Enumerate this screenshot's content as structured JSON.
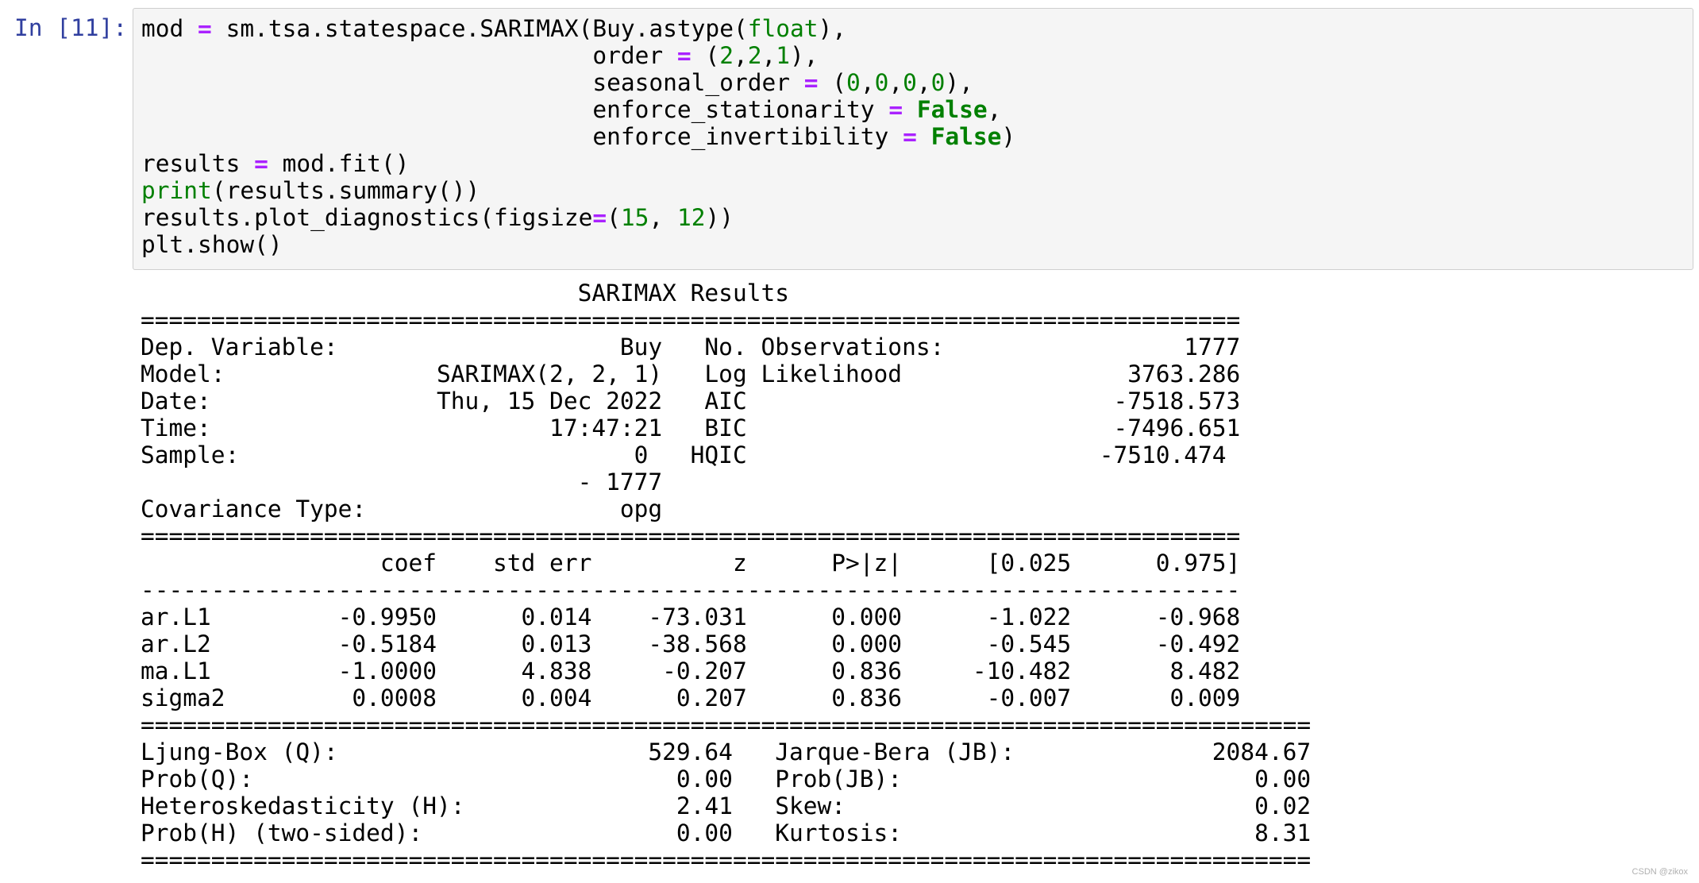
{
  "cell": {
    "prompt": "In [11]:",
    "code_lines": [
      [
        {
          "t": "mod ",
          "c": ""
        },
        {
          "t": "=",
          "c": "op"
        },
        {
          "t": " sm.tsa.statespace.SARIMAX(Buy.astype(",
          "c": ""
        },
        {
          "t": "float",
          "c": "bi"
        },
        {
          "t": "),",
          "c": ""
        }
      ],
      [
        {
          "t": "                                order ",
          "c": ""
        },
        {
          "t": "=",
          "c": "op"
        },
        {
          "t": " (",
          "c": ""
        },
        {
          "t": "2",
          "c": "nm"
        },
        {
          "t": ",",
          "c": ""
        },
        {
          "t": "2",
          "c": "nm"
        },
        {
          "t": ",",
          "c": ""
        },
        {
          "t": "1",
          "c": "nm"
        },
        {
          "t": "),",
          "c": ""
        }
      ],
      [
        {
          "t": "                                seasonal_order ",
          "c": ""
        },
        {
          "t": "=",
          "c": "op"
        },
        {
          "t": " (",
          "c": ""
        },
        {
          "t": "0",
          "c": "nm"
        },
        {
          "t": ",",
          "c": ""
        },
        {
          "t": "0",
          "c": "nm"
        },
        {
          "t": ",",
          "c": ""
        },
        {
          "t": "0",
          "c": "nm"
        },
        {
          "t": ",",
          "c": ""
        },
        {
          "t": "0",
          "c": "nm"
        },
        {
          "t": "),",
          "c": ""
        }
      ],
      [
        {
          "t": "                                enforce_stationarity ",
          "c": ""
        },
        {
          "t": "=",
          "c": "op"
        },
        {
          "t": " ",
          "c": ""
        },
        {
          "t": "False",
          "c": "kw"
        },
        {
          "t": ",",
          "c": ""
        }
      ],
      [
        {
          "t": "                                enforce_invertibility ",
          "c": ""
        },
        {
          "t": "=",
          "c": "op"
        },
        {
          "t": " ",
          "c": ""
        },
        {
          "t": "False",
          "c": "kw"
        },
        {
          "t": ")",
          "c": ""
        }
      ],
      [
        {
          "t": "results ",
          "c": ""
        },
        {
          "t": "=",
          "c": "op"
        },
        {
          "t": " mod.fit()",
          "c": ""
        }
      ],
      [
        {
          "t": "print",
          "c": "bi"
        },
        {
          "t": "(results.summary())",
          "c": ""
        }
      ],
      [
        {
          "t": "results.plot_diagnostics(figsize",
          "c": ""
        },
        {
          "t": "=",
          "c": "op"
        },
        {
          "t": "(",
          "c": ""
        },
        {
          "t": "15",
          "c": "nm"
        },
        {
          "t": ", ",
          "c": ""
        },
        {
          "t": "12",
          "c": "nm"
        },
        {
          "t": "))",
          "c": ""
        }
      ],
      [
        {
          "t": "plt.show()",
          "c": ""
        }
      ]
    ]
  },
  "output_lines": [
    "                               SARIMAX Results                                ",
    "==============================================================================",
    "Dep. Variable:                    Buy   No. Observations:                 1777",
    "Model:               SARIMAX(2, 2, 1)   Log Likelihood                3763.286",
    "Date:                Thu, 15 Dec 2022   AIC                          -7518.573",
    "Time:                        17:47:21   BIC                          -7496.651",
    "Sample:                            0   HQIC                         -7510.474",
    "                               - 1777                                         ",
    "Covariance Type:                  opg                                         ",
    "==============================================================================",
    "                 coef    std err          z      P>|z|      [0.025      0.975]",
    "------------------------------------------------------------------------------",
    "ar.L1         -0.9950      0.014    -73.031      0.000      -1.022      -0.968",
    "ar.L2         -0.5184      0.013    -38.568      0.000      -0.545      -0.492",
    "ma.L1         -1.0000      4.838     -0.207      0.836     -10.482       8.482",
    "sigma2         0.0008      0.004      0.207      0.836      -0.007       0.009",
    "===================================================================================",
    "Ljung-Box (Q):                      529.64   Jarque-Bera (JB):              2084.67",
    "Prob(Q):                              0.00   Prob(JB):                         0.00",
    "Heteroskedasticity (H):               2.41   Skew:                             0.02",
    "Prob(H) (two-sided):                  0.00   Kurtosis:                         8.31",
    "==================================================================================="
  ],
  "watermark": "CSDN @zikox"
}
